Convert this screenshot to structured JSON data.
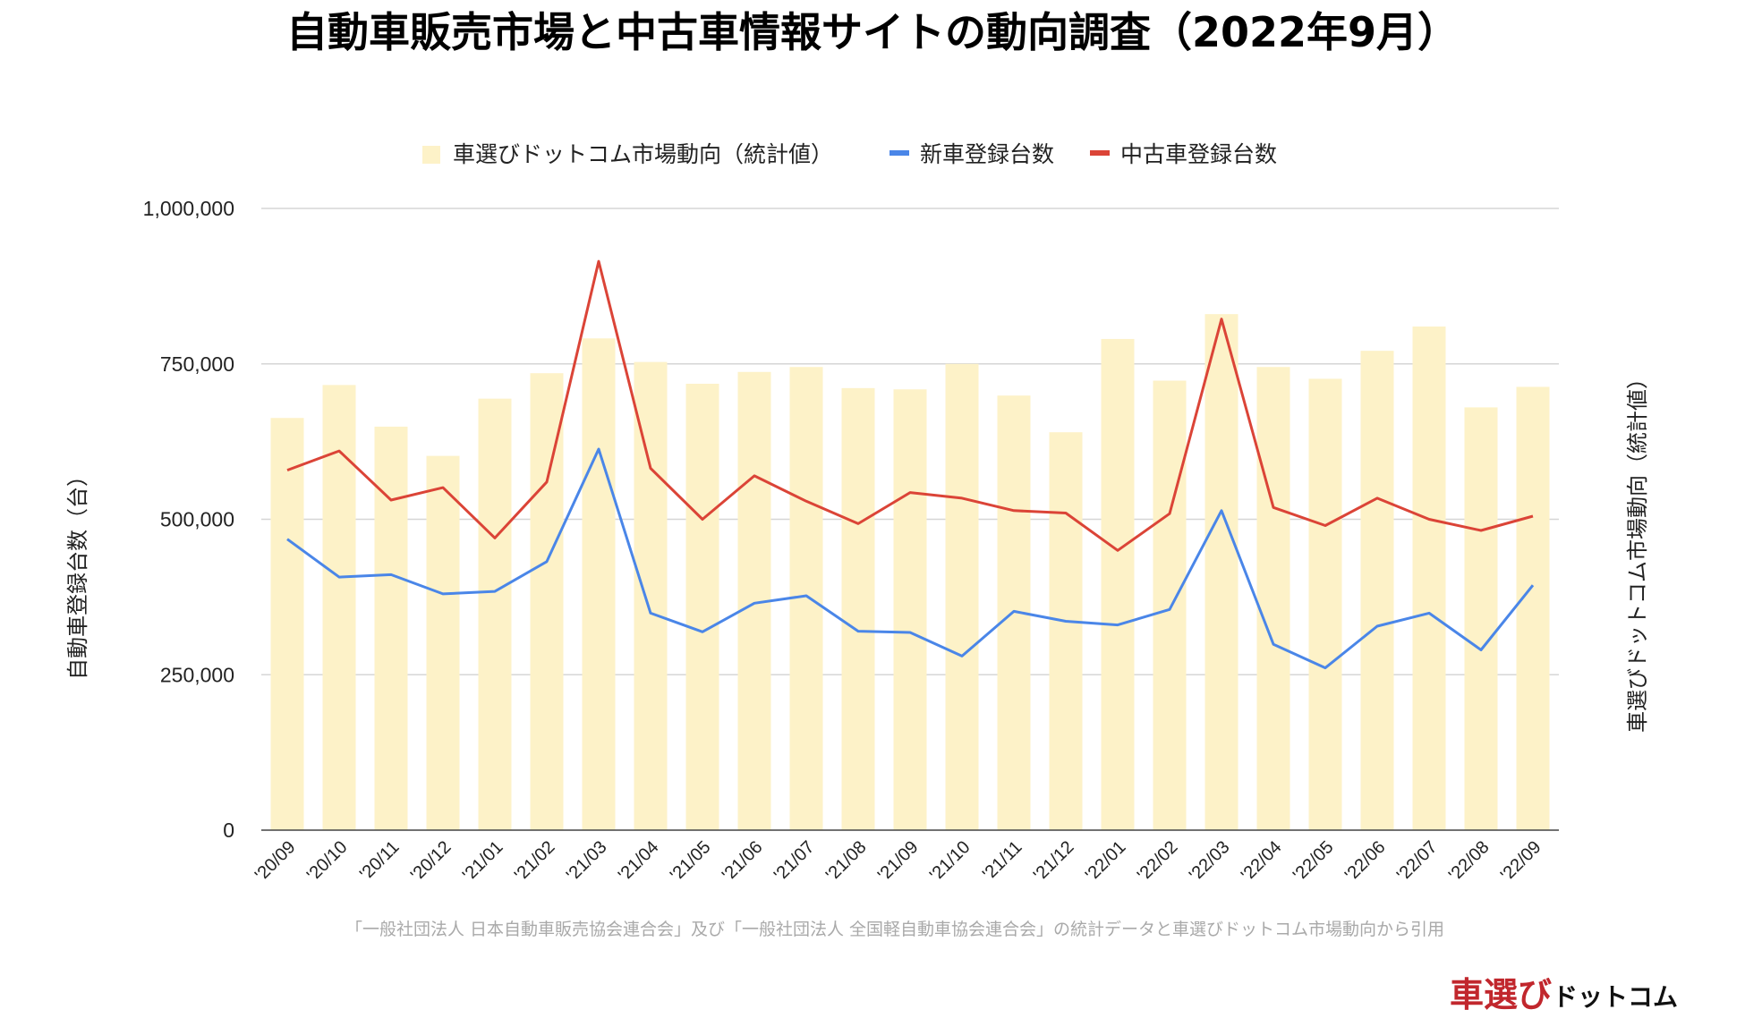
{
  "chart_data": {
    "type": "bar",
    "title": "自動車販売市場と中古車情報サイトの動向調査（2022年9月）",
    "categories": [
      "'20/09",
      "'20/10",
      "'20/11",
      "'20/12",
      "'21/01",
      "'21/02",
      "'21/03",
      "'21/04",
      "'21/05",
      "'21/06",
      "'21/07",
      "'21/08",
      "'21/09",
      "'21/10",
      "'21/11",
      "'21/12",
      "'22/01",
      "'22/02",
      "'22/03",
      "'22/04",
      "'22/05",
      "'22/06",
      "'22/07",
      "'22/08",
      "'22/09"
    ],
    "series": [
      {
        "name": "車選びドットコム市場動向（統計値）",
        "type": "bar",
        "axis": "right",
        "color": "#fdf2c8",
        "values": [
          663000,
          716000,
          649000,
          602000,
          694000,
          735000,
          791000,
          753000,
          718000,
          737000,
          745000,
          711000,
          709000,
          750000,
          699000,
          640000,
          790000,
          723000,
          830000,
          745000,
          726000,
          771000,
          810000,
          680000,
          713000
        ]
      },
      {
        "name": "新車登録台数",
        "type": "line",
        "axis": "left",
        "color": "#4a86e8",
        "values": [
          468000,
          407000,
          411000,
          380000,
          384000,
          432000,
          613000,
          349000,
          319000,
          365000,
          377000,
          320000,
          318000,
          280000,
          352000,
          336000,
          330000,
          355000,
          514000,
          299000,
          261000,
          328000,
          349000,
          290000,
          394000
        ]
      },
      {
        "name": "中古車登録台数",
        "type": "line",
        "axis": "left",
        "color": "#db4437",
        "values": [
          579000,
          610000,
          531000,
          551000,
          470000,
          560000,
          915000,
          582000,
          500000,
          570000,
          529000,
          493000,
          543000,
          534000,
          514000,
          510000,
          450000,
          509000,
          822000,
          519000,
          490000,
          534000,
          500000,
          482000,
          505000
        ]
      }
    ],
    "ylabel": "自動車登録台数（台）",
    "ylabel_right": "車選びドットコム市場動向（統計値）",
    "ylim": [
      0,
      1000000
    ],
    "yticks": [
      "0",
      "250,000",
      "500,000",
      "750,000",
      "1,000,000"
    ],
    "ytick_values": [
      0,
      250000,
      500000,
      750000,
      1000000
    ],
    "grid": true,
    "legend_position": "top-center"
  },
  "source_note": "「一般社団法人 日本自動車販売協会連合会」及び「一般社団法人 全国軽自動車協会連合会」の統計データと車選びドットコム市場動向から引用",
  "logo": {
    "main": "車選び",
    "sub": "ドットコム"
  }
}
